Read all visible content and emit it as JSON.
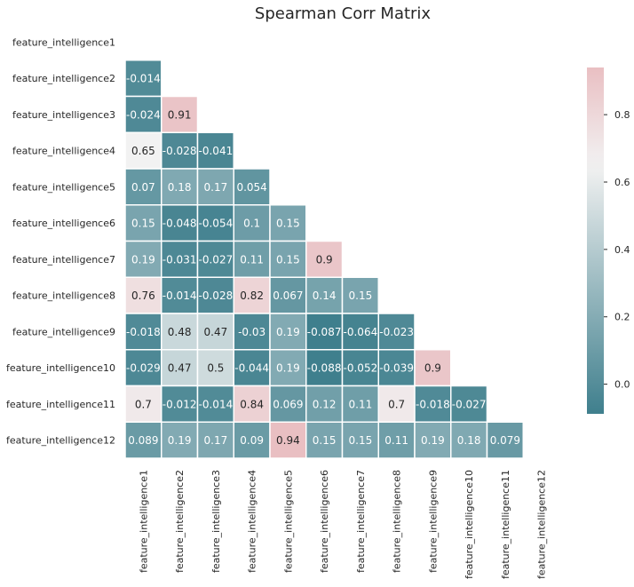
{
  "chart_data": {
    "type": "heatmap",
    "title": "Spearman Corr Matrix",
    "mask": "upper-triangle",
    "labels": [
      "feature_intelligence1",
      "feature_intelligence2",
      "feature_intelligence3",
      "feature_intelligence4",
      "feature_intelligence5",
      "feature_intelligence6",
      "feature_intelligence7",
      "feature_intelligence8",
      "feature_intelligence9",
      "feature_intelligence10",
      "feature_intelligence11",
      "feature_intelligence12"
    ],
    "matrix": [
      [],
      [
        "-0.014"
      ],
      [
        "-0.024",
        "0.91"
      ],
      [
        "0.65",
        "-0.028",
        "-0.041"
      ],
      [
        "0.07",
        "0.18",
        "0.17",
        "0.054"
      ],
      [
        "0.15",
        "-0.048",
        "-0.054",
        "0.1",
        "0.15"
      ],
      [
        "0.19",
        "-0.031",
        "-0.027",
        "0.11",
        "0.15",
        "0.9"
      ],
      [
        "0.76",
        "-0.014",
        "-0.028",
        "0.82",
        "0.067",
        "0.14",
        "0.15"
      ],
      [
        "-0.018",
        "0.48",
        "0.47",
        "-0.03",
        "0.19",
        "-0.087",
        "-0.064",
        "-0.023"
      ],
      [
        "-0.029",
        "0.47",
        "0.5",
        "-0.044",
        "0.19",
        "-0.088",
        "-0.052",
        "-0.039",
        "0.9"
      ],
      [
        "0.7",
        "-0.012",
        "-0.014",
        "0.84",
        "0.069",
        "0.12",
        "0.11",
        "0.7",
        "-0.018",
        "-0.027"
      ],
      [
        "0.089",
        "0.19",
        "0.17",
        "0.09",
        "0.94",
        "0.15",
        "0.15",
        "0.11",
        "0.19",
        "0.18",
        "0.079"
      ]
    ],
    "colorbar": {
      "vmin": -0.088,
      "vmax": 0.94,
      "ticks": [
        0.0,
        0.2,
        0.4,
        0.6,
        0.8
      ],
      "tick_labels": [
        "0.0",
        "0.2",
        "0.4",
        "0.6",
        "0.8"
      ]
    },
    "colormap": {
      "low": "#3f7f8d",
      "mid": "#f2f2f2",
      "high": "#e9bfc2",
      "center_value": 0.65
    },
    "grid_line_color": "#ffffff"
  }
}
